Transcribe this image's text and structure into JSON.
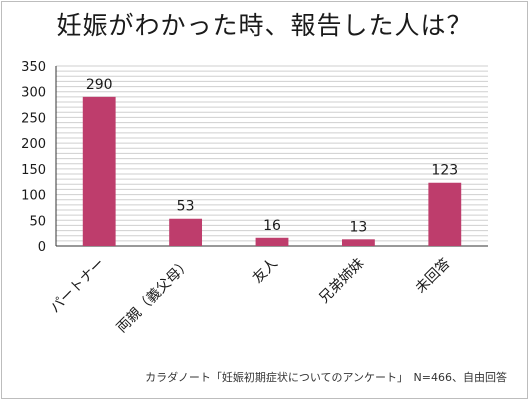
{
  "colors": {
    "bar": "#be3d6c",
    "grid": "#cfcfcf",
    "axis": "#333333",
    "text": "#1a1a1a"
  },
  "footnote": "カラダノート「妊娠初期症状についてのアンケート」　N=466、自由回答",
  "chart_data": {
    "type": "bar",
    "title": "妊娠がわかった時、報告した人は？",
    "xlabel": "",
    "ylabel": "",
    "categories": [
      "パートナー",
      "両親（義父母）",
      "友人",
      "兄弟姉妹",
      "未回答"
    ],
    "values": [
      290,
      53,
      16,
      13,
      123
    ],
    "ylim": [
      0,
      350
    ],
    "yticks": [
      0,
      50,
      100,
      150,
      200,
      250,
      300,
      350
    ],
    "minor_gridline_step": 10,
    "grid": true,
    "legend": "none",
    "data_labels": [
      "290",
      "53",
      "16",
      "13",
      "123"
    ]
  }
}
